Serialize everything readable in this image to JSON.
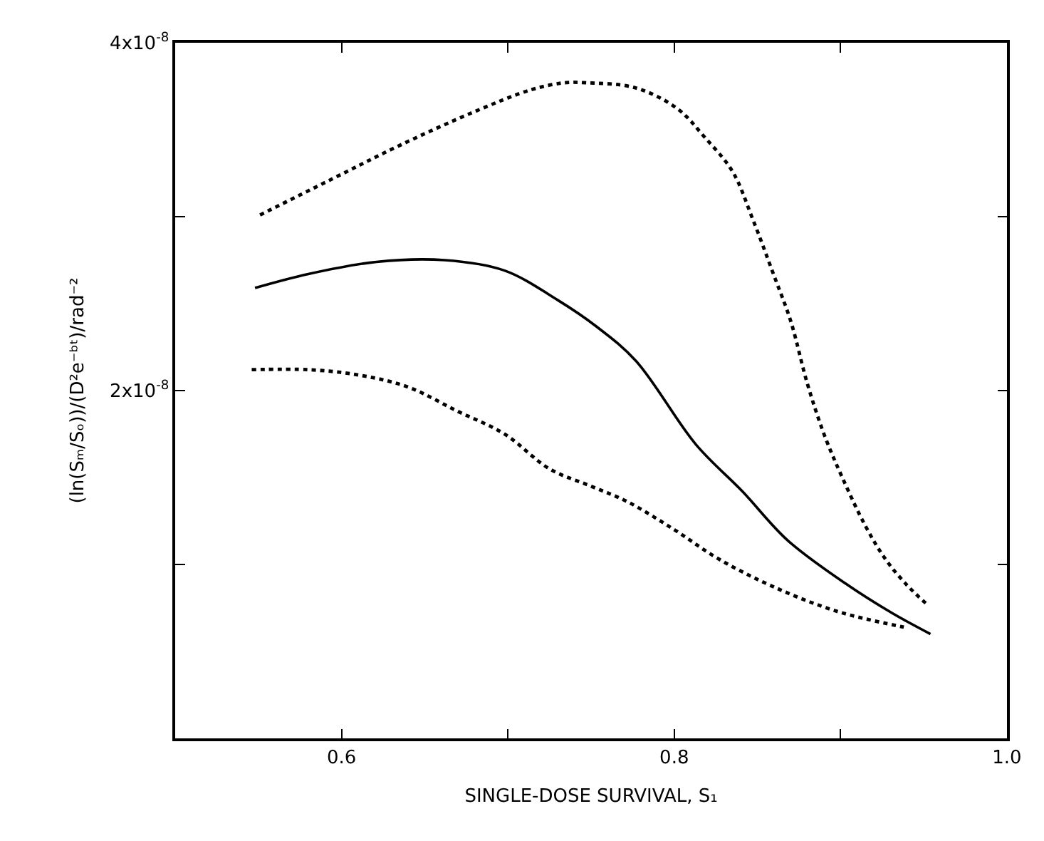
{
  "chart_data": {
    "type": "line",
    "xlabel": "SINGLE-DOSE SURVIVAL, S₁",
    "ylabel": "(ln(Sₘ/Sₒ))/(D²e⁻ᵇᵗ)/rad⁻²",
    "xlim": [
      0.5,
      1.0
    ],
    "xticks": [
      {
        "value": 0.6,
        "label": "0.6"
      },
      {
        "value": 0.7,
        "label": null
      },
      {
        "value": 0.8,
        "label": "0.8"
      },
      {
        "value": 0.9,
        "label": null
      },
      {
        "value": 1.0,
        "label": "1.0"
      }
    ],
    "ylim": [
      0,
      4e-08
    ],
    "yticks": [
      {
        "value": 1e-08,
        "label": null
      },
      {
        "value": 2e-08,
        "label": "2x10$^{-8}$"
      },
      {
        "value": 3e-08,
        "label": null
      },
      {
        "value": 4e-08,
        "label": "4x10$^{-8}$"
      }
    ],
    "marker": "none",
    "series": [
      {
        "color": "#000000",
        "line_style": "dotted",
        "x": [
          0.551,
          0.595,
          0.635,
          0.679,
          0.714,
          0.734,
          0.747,
          0.777,
          0.802,
          0.818,
          0.835,
          0.847,
          0.86,
          0.87,
          0.88,
          0.89,
          0.901,
          0.915,
          0.927,
          0.94,
          0.952
        ],
        "values": [
          3.01e-08,
          3.22e-08,
          3.41e-08,
          3.6e-08,
          3.73e-08,
          3.77e-08,
          3.77e-08,
          3.74e-08,
          3.62e-08,
          3.46e-08,
          3.26e-08,
          2.99e-08,
          2.66e-08,
          2.4e-08,
          2.04e-08,
          1.75e-08,
          1.5e-08,
          1.22e-08,
          1.03e-08,
          8.8e-09,
          7.7e-09
        ]
      },
      {
        "color": "#000000",
        "line_style": "solid",
        "x": [
          0.548,
          0.58,
          0.621,
          0.662,
          0.698,
          0.73,
          0.753,
          0.777,
          0.813,
          0.841,
          0.868,
          0.903,
          0.931,
          0.954
        ],
        "values": [
          2.59e-08,
          2.67e-08,
          2.74e-08,
          2.75e-08,
          2.69e-08,
          2.52e-08,
          2.37e-08,
          2.17e-08,
          1.69e-08,
          1.42e-08,
          1.14e-08,
          8.9e-09,
          7.2e-09,
          6e-09
        ]
      },
      {
        "color": "#000000",
        "line_style": "dotted",
        "x": [
          0.546,
          0.58,
          0.61,
          0.64,
          0.67,
          0.698,
          0.725,
          0.75,
          0.772,
          0.8,
          0.827,
          0.86,
          0.898,
          0.938
        ],
        "values": [
          2.12e-08,
          2.12e-08,
          2.09e-08,
          2.02e-08,
          1.88e-08,
          1.75e-08,
          1.55e-08,
          1.45e-08,
          1.36e-08,
          1.2e-08,
          1.03e-08,
          8.7e-09,
          7.3e-09,
          6.4e-09
        ]
      }
    ]
  }
}
